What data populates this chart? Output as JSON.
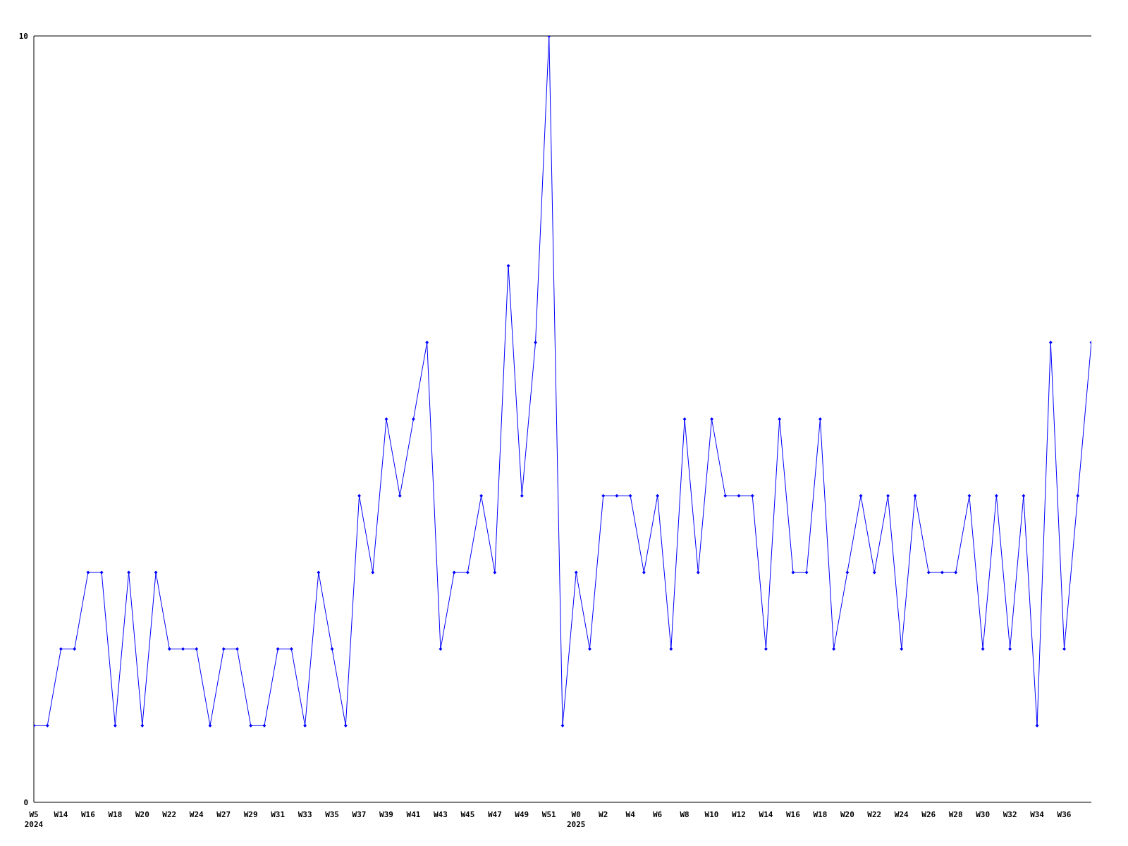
{
  "chart_data": {
    "type": "line",
    "categories": [
      "W5\n2024",
      null,
      "W14",
      null,
      "W16",
      null,
      "W18",
      null,
      "W20",
      null,
      "W22",
      null,
      "W24",
      null,
      "W27",
      null,
      "W29",
      null,
      "W31",
      null,
      "W33",
      null,
      "W35",
      null,
      "W37",
      null,
      "W39",
      null,
      "W41",
      null,
      "W43",
      null,
      "W45",
      null,
      "W47",
      null,
      "W49",
      null,
      "W51",
      null,
      "W0\n2025",
      null,
      "W2",
      null,
      "W4",
      null,
      "W6",
      null,
      "W8",
      null,
      "W10",
      null,
      "W12",
      null,
      "W14",
      null,
      "W16",
      null,
      "W18",
      null,
      "W20",
      null,
      "W22",
      null,
      "W24",
      null,
      "W26",
      null,
      "W28",
      null,
      "W30",
      null,
      "W32",
      null,
      "W34",
      null,
      "W36",
      null,
      null
    ],
    "series": [
      {
        "color": "#0000ff",
        "values": [
          1,
          1,
          2,
          2,
          3,
          3,
          1,
          3,
          1,
          3,
          2,
          2,
          2,
          1,
          2,
          2,
          1,
          1,
          2,
          2,
          1,
          3,
          2,
          1,
          4,
          3,
          5,
          4,
          5,
          6,
          2,
          3,
          3,
          4,
          3,
          7,
          4,
          6,
          10,
          1,
          3,
          2,
          4,
          4,
          4,
          3,
          4,
          2,
          5,
          3,
          5,
          4,
          4,
          4,
          2,
          5,
          3,
          3,
          5,
          2,
          3,
          4,
          3,
          4,
          2,
          4,
          3,
          3,
          3,
          4,
          2,
          4,
          2,
          4,
          1,
          6,
          2,
          4,
          6
        ]
      }
    ],
    "ylim": [
      0,
      10
    ],
    "yticks": [
      0,
      10
    ],
    "grid": false,
    "marker": "diamond",
    "line_style": "solid"
  }
}
